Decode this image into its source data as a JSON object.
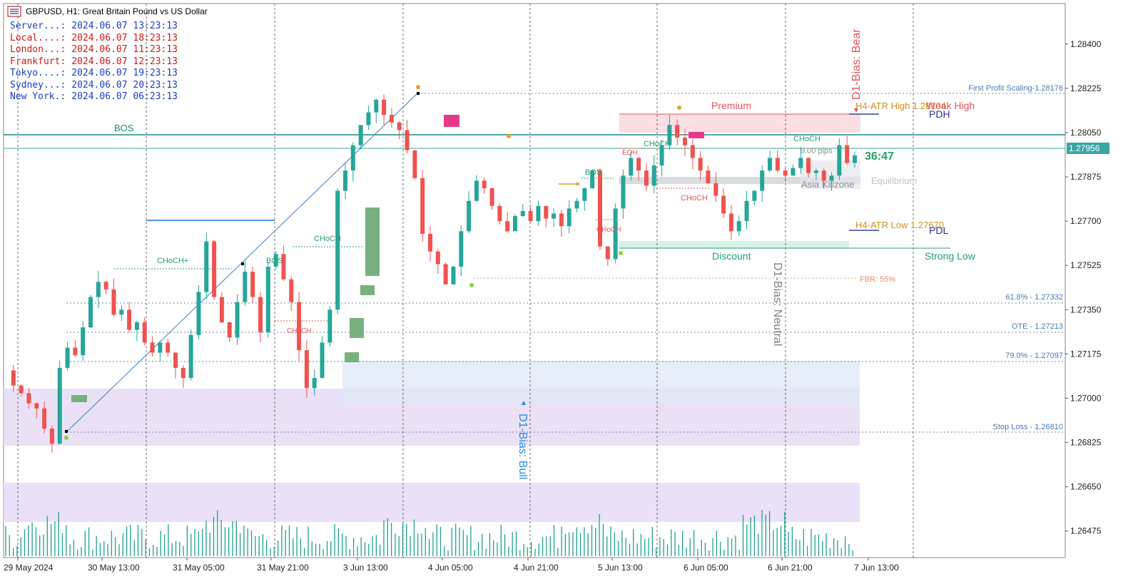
{
  "header": {
    "title": "GBPUSD, H1:  Great Britain Pound vs US Dollar"
  },
  "clocks": [
    {
      "label": "Server...:",
      "value": "2024.06.07 13:23:13",
      "color": "#1a3cc8"
    },
    {
      "label": "Local....:",
      "value": "2024.06.07 18:23:13",
      "color": "#d01818"
    },
    {
      "label": "London...:",
      "value": "2024.06.07 11:23:13",
      "color": "#d01818"
    },
    {
      "label": "Frankfurt:",
      "value": "2024.06.07 12:23:13",
      "color": "#d01818"
    },
    {
      "label": "Tokyo....:",
      "value": "2024.06.07 19:23:13",
      "color": "#1a3cc8"
    },
    {
      "label": "Sydney...:",
      "value": "2024.06.07 20:23:13",
      "color": "#1a3cc8"
    },
    {
      "label": "New York.:",
      "value": "2024.06.07 06:23:13",
      "color": "#1a3cc8"
    }
  ],
  "chart_data": {
    "type": "candlestick",
    "symbol": "GBPUSD",
    "timeframe": "H1",
    "xlabels": [
      "29 May 2024",
      "30 May 13:00",
      "31 May 05:00",
      "31 May 21:00",
      "3 Jun 13:00",
      "4 Jun 05:00",
      "4 Jun 21:00",
      "5 Jun 13:00",
      "6 Jun 05:00",
      "6 Jun 21:00",
      "7 Jun 13:00"
    ],
    "yticks": [
      "1.28400",
      "1.28225",
      "1.28050",
      "1.27875",
      "1.27700",
      "1.27525",
      "1.27350",
      "1.27175",
      "1.27000",
      "1.26825",
      "1.26650",
      "1.26475"
    ],
    "ylim": [
      1.2637,
      1.2856
    ],
    "current_price": "1.27956",
    "countdown": "36:47",
    "bullish_color": "#26a69a",
    "bearish_color": "#ef5350",
    "price_path": [
      1.2711,
      1.2705,
      1.2702,
      1.2698,
      1.2696,
      1.2688,
      1.2682,
      1.2712,
      1.272,
      1.2717,
      1.2728,
      1.274,
      1.2746,
      1.2743,
      1.2733,
      1.2735,
      1.2727,
      1.273,
      1.2722,
      1.2718,
      1.2722,
      1.2718,
      1.2712,
      1.2708,
      1.2725,
      1.2742,
      1.2762,
      1.274,
      1.273,
      1.2724,
      1.2738,
      1.275,
      1.274,
      1.2726,
      1.2752,
      1.2757,
      1.2747,
      1.2738,
      1.2719,
      1.2704,
      1.2708,
      1.2722,
      1.2735,
      1.2782,
      1.279,
      1.28,
      1.2808,
      1.2813,
      1.2818,
      1.2812,
      1.2809,
      1.2806,
      1.2798,
      1.2787,
      1.2765,
      1.2758,
      1.2753,
      1.2745,
      1.2752,
      1.2766,
      1.2778,
      1.2786,
      1.2783,
      1.2776,
      1.277,
      1.2766,
      1.2772,
      1.2774,
      1.277,
      1.2776,
      1.2771,
      1.2773,
      1.2768,
      1.2775,
      1.2778,
      1.2783,
      1.279,
      1.276,
      1.2755,
      1.2775,
      1.2788,
      1.2795,
      1.279,
      1.2784,
      1.2792,
      1.28,
      1.2808,
      1.2803,
      1.28,
      1.2795,
      1.279,
      1.2785,
      1.278,
      1.2773,
      1.2766,
      1.277,
      1.2778,
      1.2782,
      1.279,
      1.2795,
      1.279,
      1.2788,
      1.2791,
      1.2795,
      1.2789,
      1.279,
      1.2786,
      1.2788,
      1.28,
      1.2793,
      1.2796
    ],
    "annotations": {
      "bos_top": "BOS",
      "choch_plus": "CHoCH+",
      "bos_mid": "BOS",
      "choch_1": "CHoCH",
      "choch_low": "CHoCH",
      "bos_right": "BOS",
      "choch_red": "CHoCH",
      "eqh": "EQH",
      "choch_2": "CHoCH",
      "choch_red2": "CHoCH",
      "choch_3": "CHoCH",
      "pips": "9.00 pips",
      "premium": "Premium",
      "discount": "Discount",
      "equilibrium": "Equilibrium",
      "asia": "Asia Killzone",
      "fbr": "FBR: 55%",
      "strong_low": "Strong Low",
      "weak_high": "Weak High",
      "h4_high": "H4-ATR High 1.28104",
      "h4_low": "H4-ATR Low 1.27670",
      "pdh": "PDH",
      "pdl": "PDL",
      "first_profit": "First Profit Scaling-1.28176",
      "fib618": "61.8% - 1.27332",
      "ote": "OTE - 1.27213",
      "fib79": "79.0% - 1.27097",
      "stop_loss": "Stop Loss - 1.26810",
      "bias_bull": "D1-Bias: Bull",
      "bias_bear": "D1-Bias: Bear",
      "bias_neutral": "D1-Bias: Neutral"
    }
  }
}
